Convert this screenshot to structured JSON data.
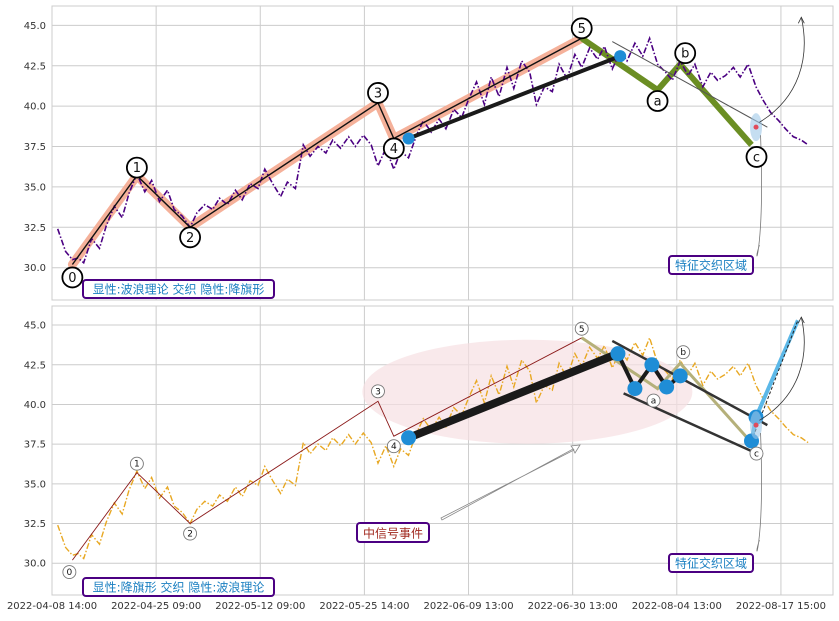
{
  "chart_data": [
    {
      "type": "line",
      "panel": "top",
      "title": "",
      "xlabel": "",
      "ylabel": "",
      "ylim": [
        28.0,
        46.2
      ],
      "yticks": [
        30.0,
        32.5,
        35.0,
        37.5,
        40.0,
        42.5,
        45.0
      ],
      "ytick_labels": [
        "30.0",
        "32.5",
        "35.0",
        "37.5",
        "40.0",
        "42.5",
        "45.0"
      ],
      "grid": true,
      "series": [
        {
          "role": "price",
          "color": "#4b0082",
          "style": "dashdot",
          "points": [
            [
              0.5,
              32.4
            ],
            [
              1.2,
              31.0
            ],
            [
              1.8,
              30.5
            ],
            [
              2.3,
              30.6
            ],
            [
              2.8,
              30.3
            ],
            [
              3.5,
              31.8
            ],
            [
              4.2,
              31.2
            ],
            [
              4.8,
              32.6
            ],
            [
              5.5,
              33.8
            ],
            [
              6.2,
              33.1
            ],
            [
              6.8,
              34.6
            ],
            [
              7.5,
              35.8
            ],
            [
              8.2,
              34.7
            ],
            [
              8.8,
              35.4
            ],
            [
              9.5,
              34.1
            ],
            [
              10.2,
              34.8
            ],
            [
              10.8,
              33.6
            ],
            [
              11.5,
              33.2
            ],
            [
              12.2,
              32.5
            ],
            [
              12.8,
              33.4
            ],
            [
              13.5,
              33.9
            ],
            [
              14.2,
              33.6
            ],
            [
              14.8,
              34.3
            ],
            [
              15.5,
              33.9
            ],
            [
              16.2,
              34.8
            ],
            [
              16.8,
              34.2
            ],
            [
              17.5,
              35.2
            ],
            [
              18.2,
              34.9
            ],
            [
              18.8,
              36.1
            ],
            [
              19.5,
              35.2
            ],
            [
              20.2,
              34.4
            ],
            [
              20.8,
              35.3
            ],
            [
              21.5,
              34.9
            ],
            [
              22.2,
              37.6
            ],
            [
              22.8,
              36.9
            ],
            [
              23.5,
              37.5
            ],
            [
              24.2,
              37.1
            ],
            [
              24.8,
              37.9
            ],
            [
              25.5,
              37.4
            ],
            [
              26.2,
              38.1
            ],
            [
              26.8,
              37.5
            ],
            [
              27.5,
              38.2
            ],
            [
              28.2,
              37.6
            ],
            [
              28.8,
              36.3
            ],
            [
              29.5,
              37.4
            ],
            [
              30.2,
              36.1
            ],
            [
              30.8,
              37.2
            ],
            [
              31.5,
              36.8
            ],
            [
              32.2,
              38.2
            ],
            [
              32.8,
              39.1
            ],
            [
              33.5,
              38.4
            ],
            [
              34.2,
              39.2
            ],
            [
              34.8,
              38.6
            ],
            [
              35.5,
              39.8
            ],
            [
              36.2,
              39.3
            ],
            [
              36.8,
              40.4
            ],
            [
              37.5,
              41.5
            ],
            [
              38.2,
              40.1
            ],
            [
              38.8,
              41.8
            ],
            [
              39.5,
              40.6
            ],
            [
              40.2,
              42.4
            ],
            [
              40.8,
              41.1
            ],
            [
              41.5,
              42.8
            ],
            [
              42.2,
              42.1
            ],
            [
              42.8,
              40.1
            ],
            [
              43.5,
              41.2
            ],
            [
              44.2,
              40.9
            ],
            [
              44.8,
              42.6
            ],
            [
              45.5,
              41.7
            ],
            [
              46.2,
              43.2
            ],
            [
              46.8,
              42.4
            ],
            [
              47.5,
              43.6
            ],
            [
              48.2,
              42.9
            ],
            [
              48.8,
              43.7
            ],
            [
              49.5,
              42.3
            ],
            [
              50.2,
              43.4
            ],
            [
              50.8,
              42.8
            ],
            [
              51.5,
              43.9
            ],
            [
              52.2,
              43.1
            ],
            [
              52.8,
              44.2
            ],
            [
              53.5,
              42.6
            ],
            [
              54.2,
              42.1
            ],
            [
              54.8,
              41.6
            ],
            [
              55.5,
              42.8
            ],
            [
              56.2,
              41.9
            ],
            [
              56.8,
              42.6
            ],
            [
              57.5,
              41.2
            ],
            [
              58.2,
              42.1
            ],
            [
              58.8,
              41.6
            ],
            [
              59.5,
              41.9
            ],
            [
              60.2,
              42.4
            ],
            [
              60.8,
              41.8
            ],
            [
              61.5,
              42.6
            ],
            [
              62.2,
              41.2
            ],
            [
              62.8,
              40.4
            ],
            [
              63.5,
              39.6
            ],
            [
              64.2,
              39.1
            ],
            [
              64.8,
              38.6
            ],
            [
              65.5,
              38.1
            ],
            [
              66.2,
              37.9
            ],
            [
              66.8,
              37.6
            ]
          ]
        }
      ],
      "waves": {
        "labels": [
          "0",
          "1",
          "2",
          "3",
          "4",
          "5",
          "a",
          "b",
          "c"
        ],
        "points": [
          [
            1.8,
            30.2
          ],
          [
            7.5,
            35.7
          ],
          [
            12.2,
            32.5
          ],
          [
            28.8,
            40.2
          ],
          [
            30.2,
            38.0
          ],
          [
            46.8,
            44.2
          ],
          [
            53.5,
            41.0
          ],
          [
            55.5,
            42.6
          ],
          [
            61.8,
            37.6
          ]
        ],
        "label_offsets": "mixed"
      },
      "markers": [
        {
          "x": 31.5,
          "y": 38.0,
          "color": "#1f8dd6"
        },
        {
          "x": 50.2,
          "y": 43.1,
          "color": "#1f8dd6"
        }
      ],
      "annotations": [
        "特征交织区域",
        "显性:波浪理论 交织 隐性:降旗形"
      ]
    },
    {
      "type": "line",
      "panel": "bottom",
      "title": "",
      "xlabel": "",
      "ylabel": "",
      "ylim": [
        28.0,
        46.2
      ],
      "yticks": [
        30.0,
        32.5,
        35.0,
        37.5,
        40.0,
        42.5,
        45.0
      ],
      "ytick_labels": [
        "30.0",
        "32.5",
        "35.0",
        "37.5",
        "40.0",
        "42.5",
        "45.0"
      ],
      "grid": true,
      "series": [
        {
          "role": "price",
          "color": "#e8a823",
          "style": "dashdot",
          "points": [
            [
              0.5,
              32.4
            ],
            [
              1.2,
              31.0
            ],
            [
              1.8,
              30.5
            ],
            [
              2.3,
              30.6
            ],
            [
              2.8,
              30.3
            ],
            [
              3.5,
              31.8
            ],
            [
              4.2,
              31.2
            ],
            [
              4.8,
              32.6
            ],
            [
              5.5,
              33.8
            ],
            [
              6.2,
              33.1
            ],
            [
              6.8,
              34.6
            ],
            [
              7.5,
              35.8
            ],
            [
              8.2,
              34.7
            ],
            [
              8.8,
              35.4
            ],
            [
              9.5,
              34.1
            ],
            [
              10.2,
              34.8
            ],
            [
              10.8,
              33.6
            ],
            [
              11.5,
              33.2
            ],
            [
              12.2,
              32.5
            ],
            [
              12.8,
              33.4
            ],
            [
              13.5,
              33.9
            ],
            [
              14.2,
              33.6
            ],
            [
              14.8,
              34.3
            ],
            [
              15.5,
              33.9
            ],
            [
              16.2,
              34.8
            ],
            [
              16.8,
              34.2
            ],
            [
              17.5,
              35.2
            ],
            [
              18.2,
              34.9
            ],
            [
              18.8,
              36.1
            ],
            [
              19.5,
              35.2
            ],
            [
              20.2,
              34.4
            ],
            [
              20.8,
              35.3
            ],
            [
              21.5,
              34.9
            ],
            [
              22.2,
              37.6
            ],
            [
              22.8,
              36.9
            ],
            [
              23.5,
              37.5
            ],
            [
              24.2,
              37.1
            ],
            [
              24.8,
              37.9
            ],
            [
              25.5,
              37.4
            ],
            [
              26.2,
              38.1
            ],
            [
              26.8,
              37.5
            ],
            [
              27.5,
              38.2
            ],
            [
              28.2,
              37.6
            ],
            [
              28.8,
              36.3
            ],
            [
              29.5,
              37.4
            ],
            [
              30.2,
              36.1
            ],
            [
              30.8,
              37.2
            ],
            [
              31.5,
              36.8
            ],
            [
              32.2,
              38.2
            ],
            [
              32.8,
              39.1
            ],
            [
              33.5,
              38.4
            ],
            [
              34.2,
              39.2
            ],
            [
              34.8,
              38.6
            ],
            [
              35.5,
              39.8
            ],
            [
              36.2,
              39.3
            ],
            [
              36.8,
              40.4
            ],
            [
              37.5,
              41.5
            ],
            [
              38.2,
              40.1
            ],
            [
              38.8,
              41.8
            ],
            [
              39.5,
              40.6
            ],
            [
              40.2,
              42.4
            ],
            [
              40.8,
              41.1
            ],
            [
              41.5,
              42.8
            ],
            [
              42.2,
              42.1
            ],
            [
              42.8,
              40.1
            ],
            [
              43.5,
              41.2
            ],
            [
              44.2,
              40.9
            ],
            [
              44.8,
              42.6
            ],
            [
              45.5,
              41.7
            ],
            [
              46.2,
              43.2
            ],
            [
              46.8,
              42.4
            ],
            [
              47.5,
              43.6
            ],
            [
              48.2,
              42.9
            ],
            [
              48.8,
              43.7
            ],
            [
              49.5,
              42.3
            ],
            [
              50.2,
              43.4
            ],
            [
              50.8,
              42.8
            ],
            [
              51.5,
              43.9
            ],
            [
              52.2,
              43.1
            ],
            [
              52.8,
              44.2
            ],
            [
              53.5,
              42.6
            ],
            [
              54.2,
              42.1
            ],
            [
              54.8,
              41.6
            ],
            [
              55.5,
              42.8
            ],
            [
              56.2,
              41.9
            ],
            [
              56.8,
              42.6
            ],
            [
              57.5,
              41.2
            ],
            [
              58.2,
              42.1
            ],
            [
              58.8,
              41.6
            ],
            [
              59.5,
              41.9
            ],
            [
              60.2,
              42.4
            ],
            [
              60.8,
              41.8
            ],
            [
              61.5,
              42.6
            ],
            [
              62.2,
              41.2
            ],
            [
              62.8,
              40.4
            ],
            [
              63.5,
              39.6
            ],
            [
              64.2,
              39.1
            ],
            [
              64.8,
              38.6
            ],
            [
              65.5,
              38.1
            ],
            [
              66.2,
              37.9
            ],
            [
              66.8,
              37.6
            ]
          ]
        }
      ],
      "waves": {
        "labels": [
          "0",
          "1",
          "2",
          "3",
          "4",
          "5",
          "a",
          "b",
          "c"
        ],
        "points": [
          [
            1.8,
            30.2
          ],
          [
            7.5,
            35.7
          ],
          [
            12.2,
            32.5
          ],
          [
            28.8,
            40.2
          ],
          [
            30.2,
            38.0
          ],
          [
            46.8,
            44.2
          ],
          [
            53.5,
            41.0
          ],
          [
            55.5,
            42.6
          ],
          [
            61.8,
            37.6
          ]
        ]
      },
      "markers": [
        {
          "x": 31.5,
          "y": 37.9,
          "color": "#1f8dd6"
        },
        {
          "x": 50.0,
          "y": 43.2,
          "color": "#1f8dd6"
        },
        {
          "x": 51.5,
          "y": 41.0,
          "color": "#1f8dd6"
        },
        {
          "x": 53.0,
          "y": 42.5,
          "color": "#1f8dd6"
        },
        {
          "x": 54.3,
          "y": 41.1,
          "color": "#1f8dd6"
        },
        {
          "x": 55.5,
          "y": 41.8,
          "color": "#1f8dd6"
        },
        {
          "x": 62.2,
          "y": 39.2,
          "color": "#1f8dd6"
        },
        {
          "x": 61.8,
          "y": 37.7,
          "color": "#1f8dd6"
        }
      ],
      "annotations": [
        "中信号事件",
        "特征交织区域",
        "显性:降旗形 交织 隐性:波浪理论"
      ]
    }
  ],
  "x_axis": {
    "tick_labels": [
      "2022-04-08 14:00",
      "2022-04-25 09:00",
      "2022-05-12 09:00",
      "2022-05-25 14:00",
      "2022-06-09 13:00",
      "2022-06-30 13:00",
      "2022-08-04 13:00",
      "2022-08-17 15:00"
    ],
    "xlim": [
      0,
      69
    ]
  },
  "colors": {
    "impulse_highlight": "#f4a98f",
    "wave_line": "#111111",
    "correction_highlight": "#6b8e23",
    "marker": "#1f8dd6",
    "label_text": "#1a7fc1",
    "label_border": "#4b0082",
    "event_text": "#a0281e",
    "ellipse_fill": "#f6dfe3",
    "arrow_cyan": "#5bb8e8"
  }
}
